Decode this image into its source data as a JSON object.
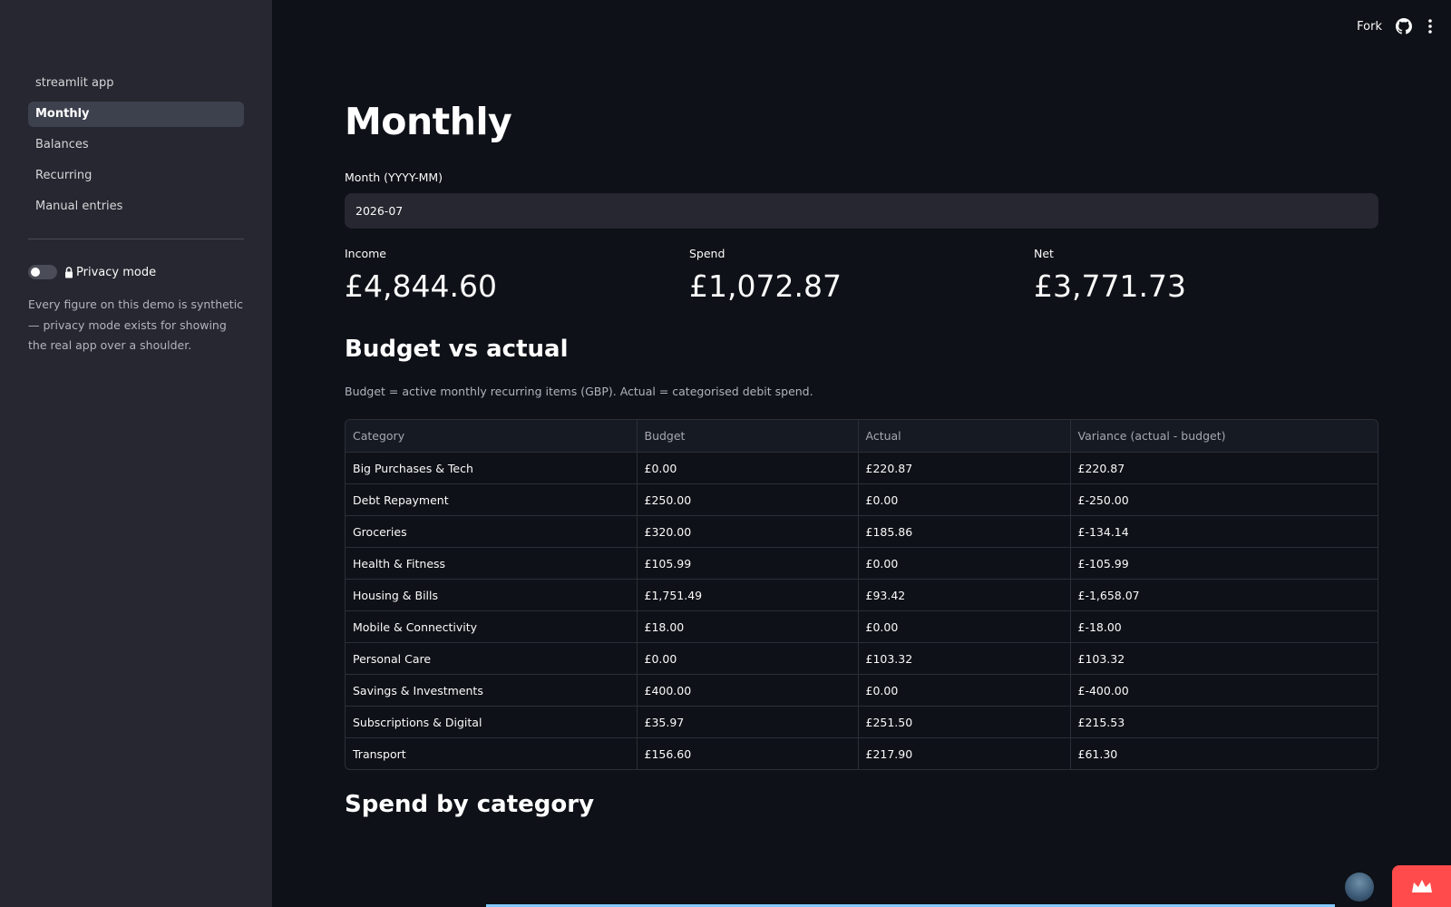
{
  "sidebar": {
    "items": [
      {
        "label": "streamlit app"
      },
      {
        "label": "Monthly"
      },
      {
        "label": "Balances"
      },
      {
        "label": "Recurring"
      },
      {
        "label": "Manual entries"
      }
    ],
    "active_item": "Monthly",
    "privacy_label": "Privacy mode",
    "privacy_on": false,
    "note": "Every figure on this demo is synthetic — privacy mode exists for showing the real app over a shoulder."
  },
  "header": {
    "fork_label": "Fork",
    "icons": [
      "github-icon",
      "kebab-menu-icon"
    ]
  },
  "main": {
    "title": "Monthly",
    "month_label": "Month (YYYY-MM)",
    "month_value": "2026-07",
    "metrics": {
      "income_label": "Income",
      "income_value": "£4,844.60",
      "spend_label": "Spend",
      "spend_value": "£1,072.87",
      "net_label": "Net",
      "net_value": "£3,771.73"
    },
    "budget_title": "Budget vs actual",
    "budget_caption": "Budget = active monthly recurring items (GBP). Actual = categorised debit spend.",
    "table": {
      "headers": [
        "Category",
        "Budget",
        "Actual",
        "Variance (actual - budget)"
      ],
      "rows": [
        [
          "Big Purchases & Tech",
          "£0.00",
          "£220.87",
          "£220.87"
        ],
        [
          "Debt Repayment",
          "£250.00",
          "£0.00",
          "£-250.00"
        ],
        [
          "Groceries",
          "£320.00",
          "£185.86",
          "£-134.14"
        ],
        [
          "Health & Fitness",
          "£105.99",
          "£0.00",
          "£-105.99"
        ],
        [
          "Housing & Bills",
          "£1,751.49",
          "£93.42",
          "£-1,658.07"
        ],
        [
          "Mobile & Connectivity",
          "£18.00",
          "£0.00",
          "£-18.00"
        ],
        [
          "Personal Care",
          "£0.00",
          "£103.32",
          "£103.32"
        ],
        [
          "Savings & Investments",
          "£400.00",
          "£0.00",
          "£-400.00"
        ],
        [
          "Subscriptions & Digital",
          "£35.97",
          "£251.50",
          "£215.53"
        ],
        [
          "Transport",
          "£156.60",
          "£217.90",
          "£61.30"
        ]
      ]
    },
    "spend_title": "Spend by category"
  },
  "colors": {
    "background": "#0e1117",
    "sidebar": "#262730",
    "accent": "#ff4b4b",
    "chart_line": "#83c9ff"
  }
}
